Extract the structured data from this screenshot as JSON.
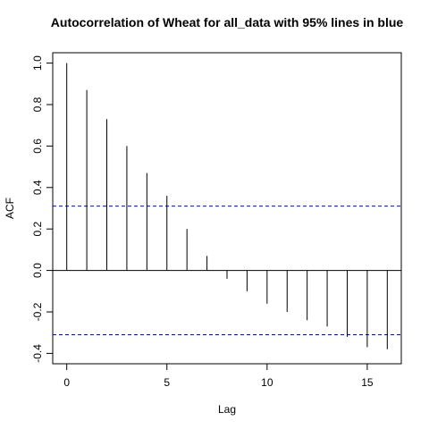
{
  "chart_data": {
    "type": "bar",
    "title": "Autocorrelation of Wheat for all_data  with 95% lines in blue",
    "xlabel": "Lag",
    "ylabel": "ACF",
    "xlim": [
      -0.7,
      16.7
    ],
    "ylim": [
      -0.45,
      1.05
    ],
    "x_ticks": [
      0,
      5,
      10,
      15
    ],
    "y_ticks": [
      -0.4,
      -0.2,
      0.0,
      0.2,
      0.4,
      0.6,
      0.8,
      1.0
    ],
    "x_tick_labels": [
      "0",
      "5",
      "10",
      "15"
    ],
    "y_tick_labels": [
      "-0.4",
      "-0.2",
      "0.0",
      "0.2",
      "0.4",
      "0.6",
      "0.8",
      "1.0"
    ],
    "lags": [
      0,
      1,
      2,
      3,
      4,
      5,
      6,
      7,
      8,
      9,
      10,
      11,
      12,
      13,
      14,
      15,
      16
    ],
    "acf": [
      1.0,
      0.87,
      0.73,
      0.6,
      0.47,
      0.36,
      0.2,
      0.07,
      -0.04,
      -0.1,
      -0.16,
      -0.2,
      -0.24,
      -0.27,
      -0.32,
      -0.37,
      -0.38
    ],
    "confidence_limits": [
      0.31,
      -0.31
    ],
    "bar_color": "#000000",
    "ci_color": "#0000ff",
    "grid": false,
    "legend": "none"
  }
}
